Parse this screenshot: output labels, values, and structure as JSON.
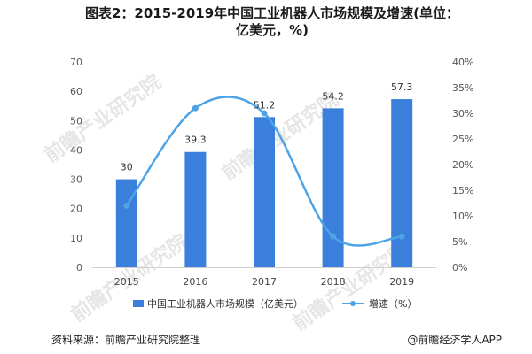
{
  "title": "图表2：2015-2019年中国工业机器人市场规模及增速(单位：亿美元，%)",
  "footer": {
    "source": "资料来源：前瞻产业研究院整理",
    "brand": "@前瞻经济学人APP"
  },
  "watermark": {
    "text": "前瞻产业研究院"
  },
  "colors": {
    "bar": "#3a7fdb",
    "line": "#4da3e6"
  },
  "chart_data": {
    "type": "bar",
    "categories": [
      "2015",
      "2016",
      "2017",
      "2018",
      "2019"
    ],
    "series": [
      {
        "name": "中国工业机器人市场规模（亿美元）",
        "type": "bar",
        "axis": "left",
        "values": [
          30,
          39.3,
          51.2,
          54.2,
          57.3
        ]
      },
      {
        "name": "增速（%）",
        "type": "line",
        "axis": "right",
        "values": [
          12,
          31,
          30,
          6,
          6
        ]
      }
    ],
    "ylim_left": [
      0,
      70
    ],
    "left_ticks": [
      "0",
      "10",
      "20",
      "30",
      "40",
      "50",
      "60",
      "70"
    ],
    "ylim_right": [
      0,
      40
    ],
    "right_ticks": [
      "0%",
      "5%",
      "10%",
      "15%",
      "20%",
      "25%",
      "30%",
      "35%",
      "40%"
    ],
    "data_labels": [
      "30",
      "39.3",
      "51.2",
      "54.2",
      "57.3"
    ],
    "grid": false,
    "legend_position": "bottom"
  }
}
